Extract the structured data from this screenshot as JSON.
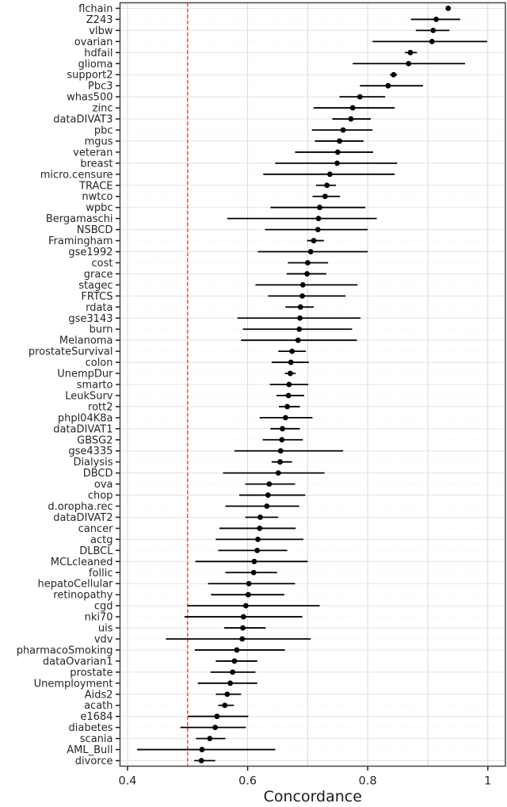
{
  "chart_data": {
    "type": "scatter",
    "subtype": "forest-plot-dot-with-ci",
    "title": "",
    "xlabel": "Concordance",
    "ylabel": "",
    "xlim": [
      0.387,
      1.029
    ],
    "x_ticks": [
      0.4,
      0.6,
      0.8,
      1
    ],
    "x_tick_labels": [
      "0.4",
      "0.6",
      "0.8",
      "1"
    ],
    "x_gridlines": [
      0.4,
      0.5,
      0.6,
      0.7,
      0.8,
      0.9,
      1.0
    ],
    "grid": true,
    "legend": "none",
    "reference_line": {
      "x": 0.5,
      "style": "dashed",
      "color": "#ee4b45"
    },
    "rows": [
      {
        "label": "flchain",
        "value": 0.934,
        "ci": [
          0.93,
          0.938
        ]
      },
      {
        "label": "Z243",
        "value": 0.914,
        "ci": [
          0.872,
          0.954
        ]
      },
      {
        "label": "vlbw",
        "value": 0.909,
        "ci": [
          0.88,
          0.936
        ]
      },
      {
        "label": "ovarian",
        "value": 0.907,
        "ci": [
          0.808,
          0.999
        ]
      },
      {
        "label": "hdfail",
        "value": 0.871,
        "ci": [
          0.862,
          0.882
        ]
      },
      {
        "label": "glioma",
        "value": 0.868,
        "ci": [
          0.775,
          0.962
        ]
      },
      {
        "label": "support2",
        "value": 0.843,
        "ci": [
          0.837,
          0.849
        ]
      },
      {
        "label": "Pbc3",
        "value": 0.834,
        "ci": [
          0.787,
          0.892
        ]
      },
      {
        "label": "whas500",
        "value": 0.787,
        "ci": [
          0.753,
          0.829
        ]
      },
      {
        "label": "zinc",
        "value": 0.775,
        "ci": [
          0.71,
          0.845
        ]
      },
      {
        "label": "dataDIVAT3",
        "value": 0.772,
        "ci": [
          0.741,
          0.805
        ]
      },
      {
        "label": "pbc",
        "value": 0.759,
        "ci": [
          0.707,
          0.808
        ]
      },
      {
        "label": "mgus",
        "value": 0.753,
        "ci": [
          0.712,
          0.793
        ]
      },
      {
        "label": "veteran",
        "value": 0.75,
        "ci": [
          0.679,
          0.809
        ]
      },
      {
        "label": "breast",
        "value": 0.749,
        "ci": [
          0.646,
          0.849
        ]
      },
      {
        "label": "micro.censure",
        "value": 0.737,
        "ci": [
          0.626,
          0.845
        ]
      },
      {
        "label": "TRACE",
        "value": 0.732,
        "ci": [
          0.714,
          0.747
        ]
      },
      {
        "label": "nwtco",
        "value": 0.729,
        "ci": [
          0.708,
          0.754
        ]
      },
      {
        "label": "wpbc",
        "value": 0.72,
        "ci": [
          0.638,
          0.796
        ]
      },
      {
        "label": "Bergamaschi",
        "value": 0.718,
        "ci": [
          0.566,
          0.815
        ]
      },
      {
        "label": "NSBCD",
        "value": 0.717,
        "ci": [
          0.629,
          0.8
        ]
      },
      {
        "label": "Framingham",
        "value": 0.71,
        "ci": [
          0.699,
          0.727
        ]
      },
      {
        "label": "gse1992",
        "value": 0.705,
        "ci": [
          0.617,
          0.8
        ]
      },
      {
        "label": "cost",
        "value": 0.7,
        "ci": [
          0.667,
          0.734
        ]
      },
      {
        "label": "grace",
        "value": 0.699,
        "ci": [
          0.665,
          0.731
        ]
      },
      {
        "label": "stagec",
        "value": 0.692,
        "ci": [
          0.613,
          0.783
        ]
      },
      {
        "label": "FRTCS",
        "value": 0.691,
        "ci": [
          0.634,
          0.763
        ]
      },
      {
        "label": "rdata",
        "value": 0.688,
        "ci": [
          0.663,
          0.71
        ]
      },
      {
        "label": "gse3143",
        "value": 0.687,
        "ci": [
          0.583,
          0.788
        ]
      },
      {
        "label": "burn",
        "value": 0.686,
        "ci": [
          0.592,
          0.774
        ]
      },
      {
        "label": "Melanoma",
        "value": 0.684,
        "ci": [
          0.589,
          0.782
        ]
      },
      {
        "label": "prostateSurvival",
        "value": 0.674,
        "ci": [
          0.651,
          0.697
        ]
      },
      {
        "label": "colon",
        "value": 0.672,
        "ci": [
          0.64,
          0.702
        ]
      },
      {
        "label": "UnempDur",
        "value": 0.671,
        "ci": [
          0.662,
          0.68
        ]
      },
      {
        "label": "smarto",
        "value": 0.669,
        "ci": [
          0.637,
          0.701
        ]
      },
      {
        "label": "LeukSurv",
        "value": 0.668,
        "ci": [
          0.648,
          0.694
        ]
      },
      {
        "label": "rott2",
        "value": 0.666,
        "ci": [
          0.652,
          0.687
        ]
      },
      {
        "label": "phpl04K8a",
        "value": 0.663,
        "ci": [
          0.62,
          0.708
        ]
      },
      {
        "label": "dataDIVAT1",
        "value": 0.658,
        "ci": [
          0.638,
          0.687
        ]
      },
      {
        "label": "GBSG2",
        "value": 0.657,
        "ci": [
          0.625,
          0.692
        ]
      },
      {
        "label": "gse4335",
        "value": 0.655,
        "ci": [
          0.578,
          0.759
        ]
      },
      {
        "label": "Dialysis",
        "value": 0.654,
        "ci": [
          0.64,
          0.674
        ]
      },
      {
        "label": "DBCD",
        "value": 0.651,
        "ci": [
          0.559,
          0.728
        ]
      },
      {
        "label": "ova",
        "value": 0.636,
        "ci": [
          0.596,
          0.679
        ]
      },
      {
        "label": "chop",
        "value": 0.634,
        "ci": [
          0.586,
          0.696
        ]
      },
      {
        "label": "d.oropha.rec",
        "value": 0.632,
        "ci": [
          0.563,
          0.686
        ]
      },
      {
        "label": "dataDIVAT2",
        "value": 0.621,
        "ci": [
          0.596,
          0.651
        ]
      },
      {
        "label": "cancer",
        "value": 0.62,
        "ci": [
          0.553,
          0.68
        ]
      },
      {
        "label": "actg",
        "value": 0.617,
        "ci": [
          0.547,
          0.693
        ]
      },
      {
        "label": "DLBCL",
        "value": 0.616,
        "ci": [
          0.551,
          0.666
        ]
      },
      {
        "label": "MCLcleaned",
        "value": 0.611,
        "ci": [
          0.513,
          0.7
        ]
      },
      {
        "label": "follic",
        "value": 0.61,
        "ci": [
          0.563,
          0.649
        ]
      },
      {
        "label": "hepatoCellular",
        "value": 0.602,
        "ci": [
          0.534,
          0.679
        ]
      },
      {
        "label": "retinopathy",
        "value": 0.601,
        "ci": [
          0.539,
          0.661
        ]
      },
      {
        "label": "cgd",
        "value": 0.597,
        "ci": [
          0.5,
          0.72
        ]
      },
      {
        "label": "nki70",
        "value": 0.593,
        "ci": [
          0.495,
          0.691
        ]
      },
      {
        "label": "uis",
        "value": 0.592,
        "ci": [
          0.561,
          0.63
        ]
      },
      {
        "label": "vdv",
        "value": 0.591,
        "ci": [
          0.464,
          0.705
        ]
      },
      {
        "label": "pharmacoSmoking",
        "value": 0.582,
        "ci": [
          0.512,
          0.662
        ]
      },
      {
        "label": "dataOvarian1",
        "value": 0.578,
        "ci": [
          0.547,
          0.616
        ]
      },
      {
        "label": "prostate",
        "value": 0.575,
        "ci": [
          0.538,
          0.613
        ]
      },
      {
        "label": "Unemployment",
        "value": 0.571,
        "ci": [
          0.517,
          0.616
        ]
      },
      {
        "label": "Aids2",
        "value": 0.566,
        "ci": [
          0.547,
          0.589
        ]
      },
      {
        "label": "acath",
        "value": 0.562,
        "ci": [
          0.551,
          0.577
        ]
      },
      {
        "label": "e1684",
        "value": 0.549,
        "ci": [
          0.501,
          0.601
        ]
      },
      {
        "label": "diabetes",
        "value": 0.546,
        "ci": [
          0.488,
          0.597
        ]
      },
      {
        "label": "scania",
        "value": 0.537,
        "ci": [
          0.514,
          0.563
        ]
      },
      {
        "label": "AML_Bull",
        "value": 0.524,
        "ci": [
          0.416,
          0.646
        ]
      },
      {
        "label": "divorce",
        "value": 0.523,
        "ci": [
          0.511,
          0.546
        ]
      }
    ],
    "colors": {
      "point": "#000000",
      "error_bar": "#000000",
      "reference": "#ee4b45",
      "grid_major": "#d9d9d9",
      "grid_row": "#e3e3e3",
      "grid_row_alt": "#ededed",
      "panel_border": "#4d4d4d",
      "tick": "#1a1a1a",
      "text": "#262626"
    }
  }
}
